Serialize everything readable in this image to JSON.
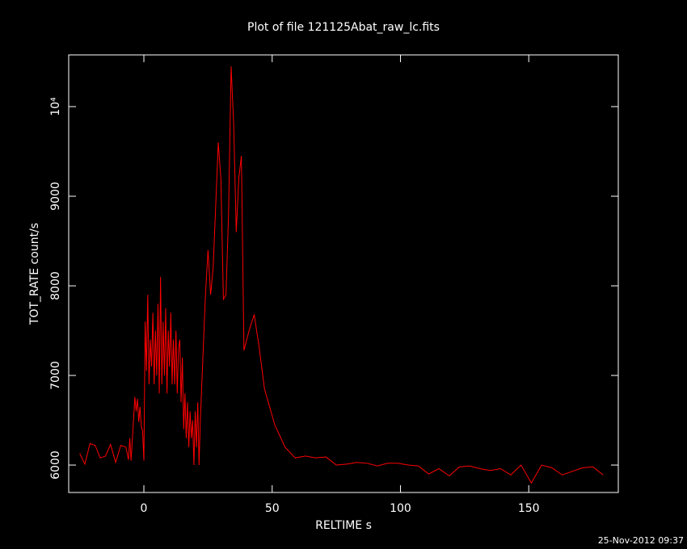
{
  "chart_data": {
    "type": "line",
    "title": "Plot of file 121125Abat_raw_lc.fits",
    "x_label": "RELTIME  s",
    "y_label": "TOT_RATE  count/s",
    "footer": "25-Nov-2012 09:37",
    "color": "#ff0000",
    "xlim": [
      -29.3,
      184.9
    ],
    "ylim": [
      5694,
      10577
    ],
    "xticks": [
      0,
      50,
      100,
      150
    ],
    "yticks": [
      6000,
      7000,
      8000,
      9000,
      {
        "value": 10000,
        "label": "10⁴"
      }
    ],
    "x": [
      -25,
      -23,
      -21,
      -19,
      -17,
      -15,
      -13,
      -11,
      -9,
      -7,
      -6,
      -5.5,
      -5,
      -4,
      -3.5,
      -3,
      -2.5,
      -2,
      -1.5,
      -1,
      -0.5,
      0,
      0.5,
      1,
      1.5,
      2,
      2.5,
      3,
      3.5,
      4,
      4.5,
      5,
      5.5,
      6,
      6.5,
      7,
      7.5,
      8,
      8.5,
      9,
      9.5,
      10,
      10.5,
      11,
      11.5,
      12,
      12.5,
      13,
      13.5,
      14,
      14.5,
      15,
      15.5,
      16,
      16.5,
      17,
      17.5,
      18,
      18.5,
      19,
      19.5,
      20,
      20.5,
      21,
      21.5,
      22,
      23,
      24,
      25,
      26,
      27,
      28,
      29,
      30,
      31,
      32,
      33,
      34,
      35,
      36,
      37,
      38,
      39,
      41,
      43,
      45,
      47,
      51,
      55,
      59,
      63,
      67,
      71,
      75,
      79,
      83,
      87,
      91,
      95,
      99,
      103,
      107,
      111,
      115,
      119,
      123,
      127,
      131,
      135,
      139,
      143,
      147,
      151,
      155,
      159,
      163,
      167,
      171,
      175,
      179
    ],
    "values": [
      6130,
      6010,
      6240,
      6220,
      6080,
      6100,
      6230,
      6030,
      6220,
      6200,
      6060,
      6300,
      6050,
      6520,
      6760,
      6600,
      6740,
      6480,
      6650,
      6430,
      6380,
      6050,
      7600,
      7050,
      7900,
      6900,
      7400,
      7100,
      7700,
      6900,
      7500,
      7000,
      7800,
      6800,
      8100,
      6900,
      7600,
      7000,
      7750,
      6800,
      7500,
      7100,
      7700,
      6900,
      7400,
      6900,
      7500,
      6800,
      7300,
      7400,
      6700,
      7200,
      6400,
      6800,
      6300,
      6700,
      6200,
      6600,
      6300,
      6500,
      6000,
      6600,
      6200,
      6700,
      6000,
      6500,
      7200,
      7900,
      8400,
      7900,
      8200,
      8900,
      9600,
      9200,
      7850,
      7900,
      8800,
      10450,
      9800,
      8600,
      9200,
      9450,
      7280,
      7500,
      7680,
      7300,
      6850,
      6450,
      6200,
      6080,
      6100,
      6080,
      6090,
      6000,
      6010,
      6030,
      6020,
      5990,
      6020,
      6020,
      6000,
      5990,
      5900,
      5960,
      5880,
      5980,
      5990,
      5960,
      5940,
      5960,
      5890,
      6000,
      5800,
      6000,
      5970,
      5890,
      5930,
      5970,
      5980,
      5890
    ]
  }
}
